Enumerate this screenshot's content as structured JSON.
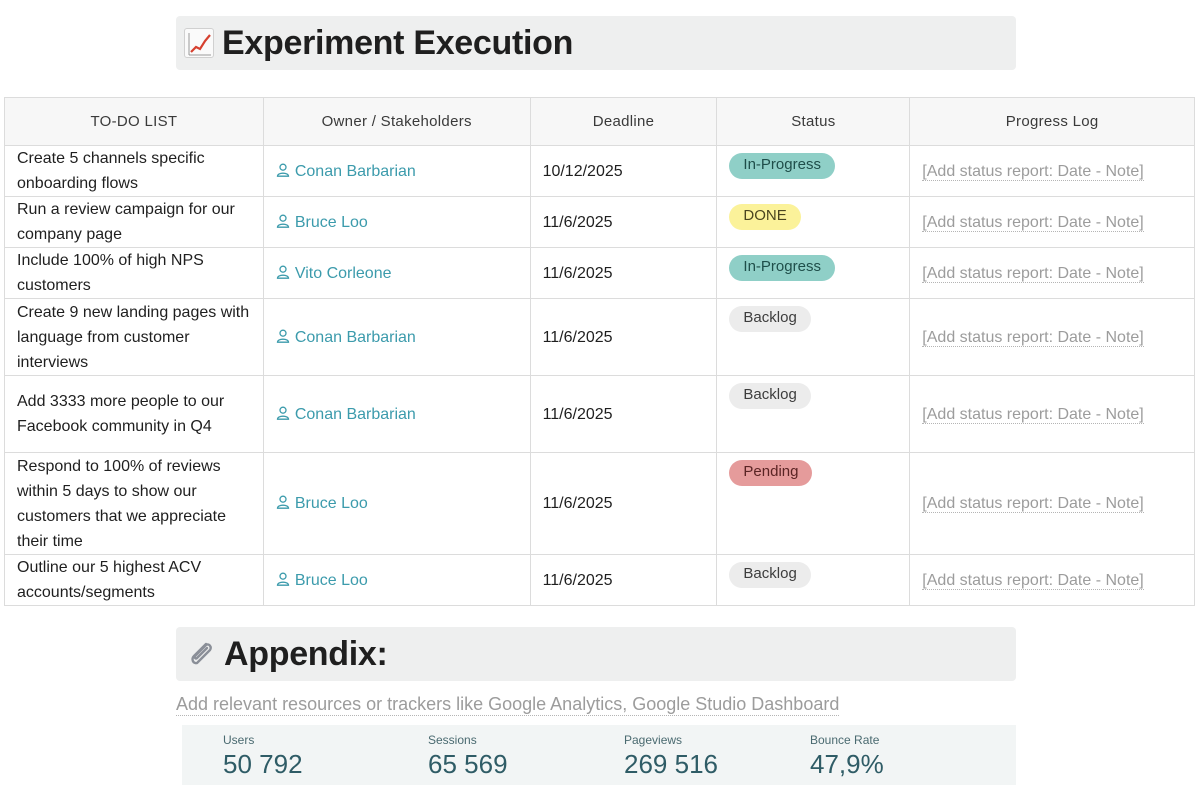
{
  "header": {
    "title": "Experiment Execution",
    "icon": "chart-increasing-icon"
  },
  "table": {
    "columns": [
      "TO-DO LIST",
      "Owner / Stakeholders",
      "Deadline",
      "Status",
      "Progress Log"
    ],
    "rows": [
      {
        "task": "Create 5 channels specific onboarding flows",
        "owner": "Conan Barbarian",
        "deadline": "10/12/2025",
        "status": "In-Progress",
        "log": "[Add status report: Date - Note]"
      },
      {
        "task": "Run a review campaign for our company page",
        "owner": "Bruce Loo",
        "deadline": "11/6/2025",
        "status": "DONE",
        "log": "[Add status report: Date - Note]"
      },
      {
        "task": "Include 100% of high NPS customers",
        "owner": "Vito Corleone",
        "deadline": "11/6/2025",
        "status": "In-Progress",
        "log": "[Add status report: Date - Note]"
      },
      {
        "task": "Create 9 new landing pages with language from customer interviews",
        "owner": "Conan Barbarian",
        "deadline": "11/6/2025",
        "status": "Backlog",
        "log": "[Add status report: Date - Note]"
      },
      {
        "task": "Add 3333 more people to our Facebook community in Q4",
        "owner": "Conan Barbarian",
        "deadline": "11/6/2025",
        "status": "Backlog",
        "log": "[Add status report: Date - Note]"
      },
      {
        "task": "Respond to 100% of reviews within 5 days to show our customers that we appreciate their time",
        "owner": "Bruce Loo",
        "deadline": "11/6/2025",
        "status": "Pending",
        "log": "[Add status report: Date - Note]"
      },
      {
        "task": "Outline our 5 highest ACV accounts/segments",
        "owner": "Bruce Loo",
        "deadline": "11/6/2025",
        "status": "Backlog",
        "log": "[Add status report: Date - Note]"
      }
    ]
  },
  "appendix": {
    "title": "Appendix:",
    "icon": "paperclip-icon",
    "link_text": "Add relevant resources or trackers like Google Analytics, Google Studio Dashboard"
  },
  "stats": [
    {
      "label": "Users",
      "value": "50 792"
    },
    {
      "label": "Sessions",
      "value": "65 569"
    },
    {
      "label": "Pageviews",
      "value": "269 516"
    },
    {
      "label": "Bounce Rate",
      "value": "47,9%"
    }
  ],
  "colors": {
    "owner_link": "#3c9bac",
    "in_progress": "#8fcfc7",
    "done": "#fbf29a",
    "backlog": "#ececec",
    "pending": "#e59b9b"
  }
}
